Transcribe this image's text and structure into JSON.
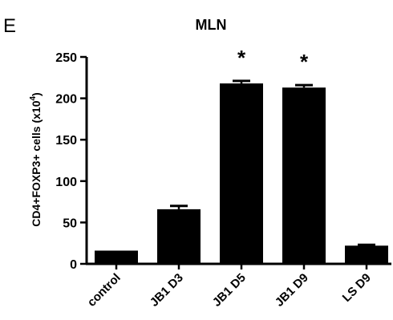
{
  "panel_label": "E",
  "chart_data": {
    "type": "bar",
    "title": "MLN",
    "xlabel": "",
    "ylabel_main": "CD4+FOXP3+ cells (x10",
    "ylabel_sup": "4",
    "ylabel_close": ")",
    "categories": [
      "control",
      "JB1 D3",
      "JB1 D5",
      "JB1 D9",
      "LS D9"
    ],
    "values": [
      16,
      66,
      218,
      213,
      22
    ],
    "errors": [
      0,
      4,
      3,
      3,
      1
    ],
    "annotations": [
      "",
      "",
      "*",
      "*",
      ""
    ],
    "ylim": [
      0,
      250
    ],
    "yticks": [
      0,
      50,
      100,
      150,
      200,
      250
    ],
    "bar_color": "#000000",
    "grid": false,
    "legend": "none"
  }
}
